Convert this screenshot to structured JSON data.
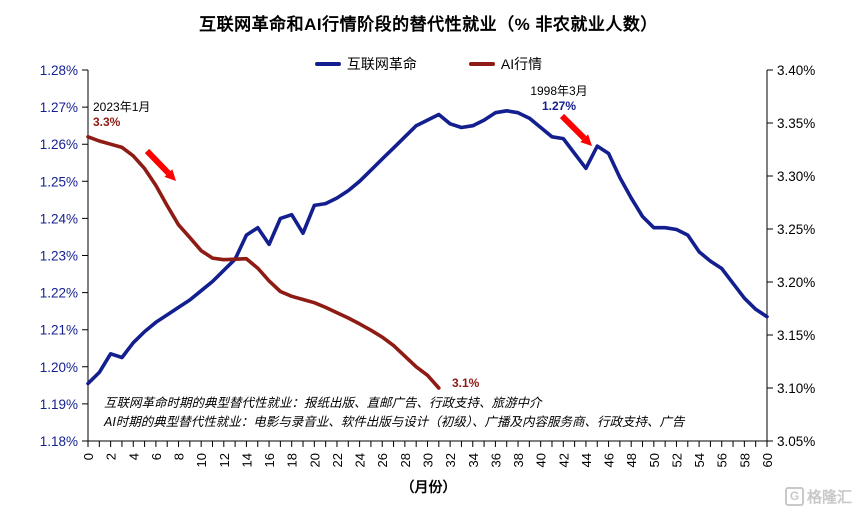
{
  "title": "互联网革命和AI行情阶段的替代性就业（% 非农就业人数）",
  "watermark": {
    "icon": "gelonghui-g-icon",
    "text": "格隆汇"
  },
  "footnotes": [
    "互联网革命时期的典型替代性就业：报纸出版、直邮广告、行政支持、旅游中介",
    "AI时期的典型替代性就业：电影与录音业、软件出版与设计（初级）、广播及内容服务商、行政支持、广告"
  ],
  "chart_data": {
    "type": "line",
    "title": "互联网革命和AI行情阶段的替代性就业（% 非农就业人数）",
    "xlabel": "（月份）",
    "x_max": 60,
    "x_ticks": [
      0,
      2,
      4,
      6,
      8,
      10,
      12,
      14,
      16,
      18,
      20,
      22,
      24,
      26,
      28,
      30,
      32,
      34,
      36,
      38,
      40,
      42,
      44,
      46,
      48,
      50,
      52,
      54,
      56,
      58,
      60
    ],
    "grid": false,
    "legend_position": "top-center",
    "left_axis": {
      "min": 1.18,
      "max": 1.28,
      "step": 0.01,
      "color": "#131F8E",
      "labels": [
        "1.28%",
        "1.27%",
        "1.26%",
        "1.25%",
        "1.24%",
        "1.23%",
        "1.22%",
        "1.21%",
        "1.20%",
        "1.19%",
        "1.18%"
      ]
    },
    "right_axis": {
      "min": 3.05,
      "max": 3.4,
      "step": 0.05,
      "color": "#000000",
      "labels": [
        "3.40%",
        "3.35%",
        "3.30%",
        "3.25%",
        "3.20%",
        "3.15%",
        "3.10%",
        "3.05%"
      ]
    },
    "series": [
      {
        "name": "互联网革命",
        "axis": "left",
        "color": "#131F8E",
        "x_start": 0,
        "values": [
          1.1955,
          1.1985,
          1.2035,
          1.2025,
          1.2065,
          1.2095,
          1.212,
          1.214,
          1.216,
          1.218,
          1.2205,
          1.223,
          1.226,
          1.229,
          1.2355,
          1.2375,
          1.233,
          1.24,
          1.241,
          1.236,
          1.2435,
          1.244,
          1.2455,
          1.2475,
          1.25,
          1.253,
          1.256,
          1.259,
          1.262,
          1.265,
          1.2665,
          1.268,
          1.2655,
          1.2645,
          1.265,
          1.2665,
          1.2685,
          1.269,
          1.2685,
          1.267,
          1.2645,
          1.262,
          1.2615,
          1.2575,
          1.2535,
          1.2595,
          1.2575,
          1.251,
          1.2455,
          1.2405,
          1.2375,
          1.2375,
          1.237,
          1.2355,
          1.231,
          1.2285,
          1.2265,
          1.2225,
          1.2185,
          1.2155,
          1.2135
        ]
      },
      {
        "name": "AI行情",
        "axis": "right",
        "color": "#8E1B14",
        "x_start": 0,
        "values": [
          3.337,
          3.333,
          3.33,
          3.327,
          3.319,
          3.307,
          3.291,
          3.272,
          3.254,
          3.242,
          3.2295,
          3.2225,
          3.221,
          3.2215,
          3.222,
          3.213,
          3.201,
          3.191,
          3.1865,
          3.1835,
          3.1805,
          3.176,
          3.171,
          3.166,
          3.1605,
          3.1545,
          3.148,
          3.14,
          3.13,
          3.12,
          3.112,
          3.1
        ]
      }
    ],
    "annotations": [
      {
        "id": "ann-2023",
        "date": "2023年1月",
        "value_label": "3.3%",
        "series": "AI行情",
        "month": 0
      },
      {
        "id": "ann-1998",
        "date": "1998年3月",
        "value_label": "1.27%",
        "series": "互联网革命",
        "month": 37
      },
      {
        "id": "ann-end",
        "value_label": "3.1%",
        "series": "AI行情",
        "month": 31
      }
    ],
    "arrow_color": "#FF0000"
  }
}
